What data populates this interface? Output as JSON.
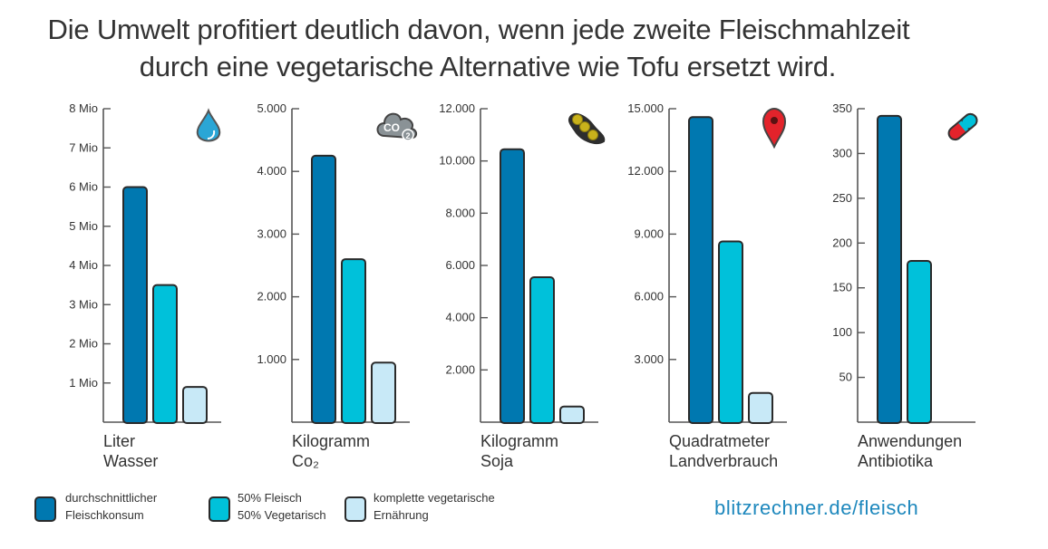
{
  "title": {
    "line1": "Die Umwelt profitiert deutlich davon, wenn jede zweite Fleischmahlzeit",
    "line2": "durch eine vegetarische Alternative wie Tofu ersetzt wird."
  },
  "colors": {
    "series1": "#0078b0",
    "series2": "#00c1da",
    "series3": "#c8e9f7",
    "outline": "#2a2a2a"
  },
  "chart_data": [
    {
      "type": "bar",
      "xlabel_line1": "Liter",
      "xlabel_line2": "Wasser",
      "icon": "water-drop-icon",
      "ylim": [
        0,
        8000000
      ],
      "ticks": [
        1000000,
        2000000,
        3000000,
        4000000,
        5000000,
        6000000,
        7000000,
        8000000
      ],
      "tick_labels": [
        "1 Mio",
        "2 Mio",
        "3 Mio",
        "4 Mio",
        "5 Mio",
        "6 Mio",
        "7 Mio",
        "8 Mio"
      ],
      "values": [
        6000000,
        3500000,
        900000
      ]
    },
    {
      "type": "bar",
      "xlabel_line1": "Kilogramm",
      "xlabel_line2": "Co₂",
      "icon": "co2-cloud-icon",
      "ylim": [
        0,
        5000
      ],
      "ticks": [
        1000,
        2000,
        3000,
        4000,
        5000
      ],
      "tick_labels": [
        "1.000",
        "2.000",
        "3.000",
        "4.000",
        "5.000"
      ],
      "values": [
        4250,
        2600,
        950
      ]
    },
    {
      "type": "bar",
      "xlabel_line1": "Kilogramm",
      "xlabel_line2": "Soja",
      "icon": "soybean-pod-icon",
      "ylim": [
        0,
        12000
      ],
      "ticks": [
        2000,
        4000,
        6000,
        8000,
        10000,
        12000
      ],
      "tick_labels": [
        "2.000",
        "4.000",
        "6.000",
        "8.000",
        "10.000",
        "12.000"
      ],
      "values": [
        10450,
        5550,
        600
      ]
    },
    {
      "type": "bar",
      "xlabel_line1": "Quadratmeter",
      "xlabel_line2": "Landverbrauch",
      "icon": "map-pin-icon",
      "ylim": [
        0,
        15000
      ],
      "ticks": [
        3000,
        6000,
        9000,
        12000,
        15000
      ],
      "tick_labels": [
        "3.000",
        "6.000",
        "9.000",
        "12.000",
        "15.000"
      ],
      "values": [
        14600,
        8650,
        1400
      ]
    },
    {
      "type": "bar",
      "xlabel_line1": "Anwendungen",
      "xlabel_line2": "Antibiotika",
      "icon": "pill-capsule-icon",
      "ylim": [
        0,
        350
      ],
      "ticks": [
        50,
        100,
        150,
        200,
        250,
        300,
        350
      ],
      "tick_labels": [
        "50",
        "100",
        "150",
        "200",
        "250",
        "300",
        "350"
      ],
      "values": [
        342,
        180,
        null
      ]
    }
  ],
  "legend": [
    {
      "line1": "durchschnittlicher",
      "line2": "Fleischkonsum"
    },
    {
      "line1": "50% Fleisch",
      "line2": "50% Vegetarisch"
    },
    {
      "line1": "komplette vegetarische",
      "line2": "Ernährung"
    }
  ],
  "footer": {
    "url": "blitzrechner.de/fleisch"
  }
}
